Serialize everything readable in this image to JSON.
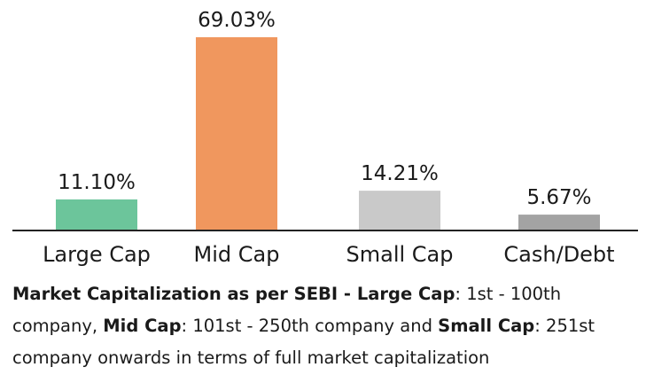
{
  "chart_data": {
    "type": "bar",
    "categories": [
      "Large Cap",
      "Mid Cap",
      "Small Cap",
      "Cash/Debt"
    ],
    "values": [
      11.1,
      69.03,
      14.21,
      5.67
    ],
    "value_labels": [
      "11.10%",
      "69.03%",
      "14.21%",
      "5.67%"
    ],
    "colors": [
      "#6cc59b",
      "#f0975e",
      "#c9c9c9",
      "#a3a3a3"
    ],
    "ylim": [
      0,
      69.03
    ],
    "grid": false,
    "legend": "none"
  },
  "footnote": {
    "title": "Market Capitalization as per SEBI - ",
    "large_cap_label": "Large Cap",
    "large_cap_text": ": 1st - 100th company, ",
    "mid_cap_label": "Mid Cap",
    "mid_cap_text": ": 101st - 250th company and ",
    "small_cap_label": "Small Cap",
    "small_cap_text": ": 251st company onwards in terms of full market capitalization"
  }
}
